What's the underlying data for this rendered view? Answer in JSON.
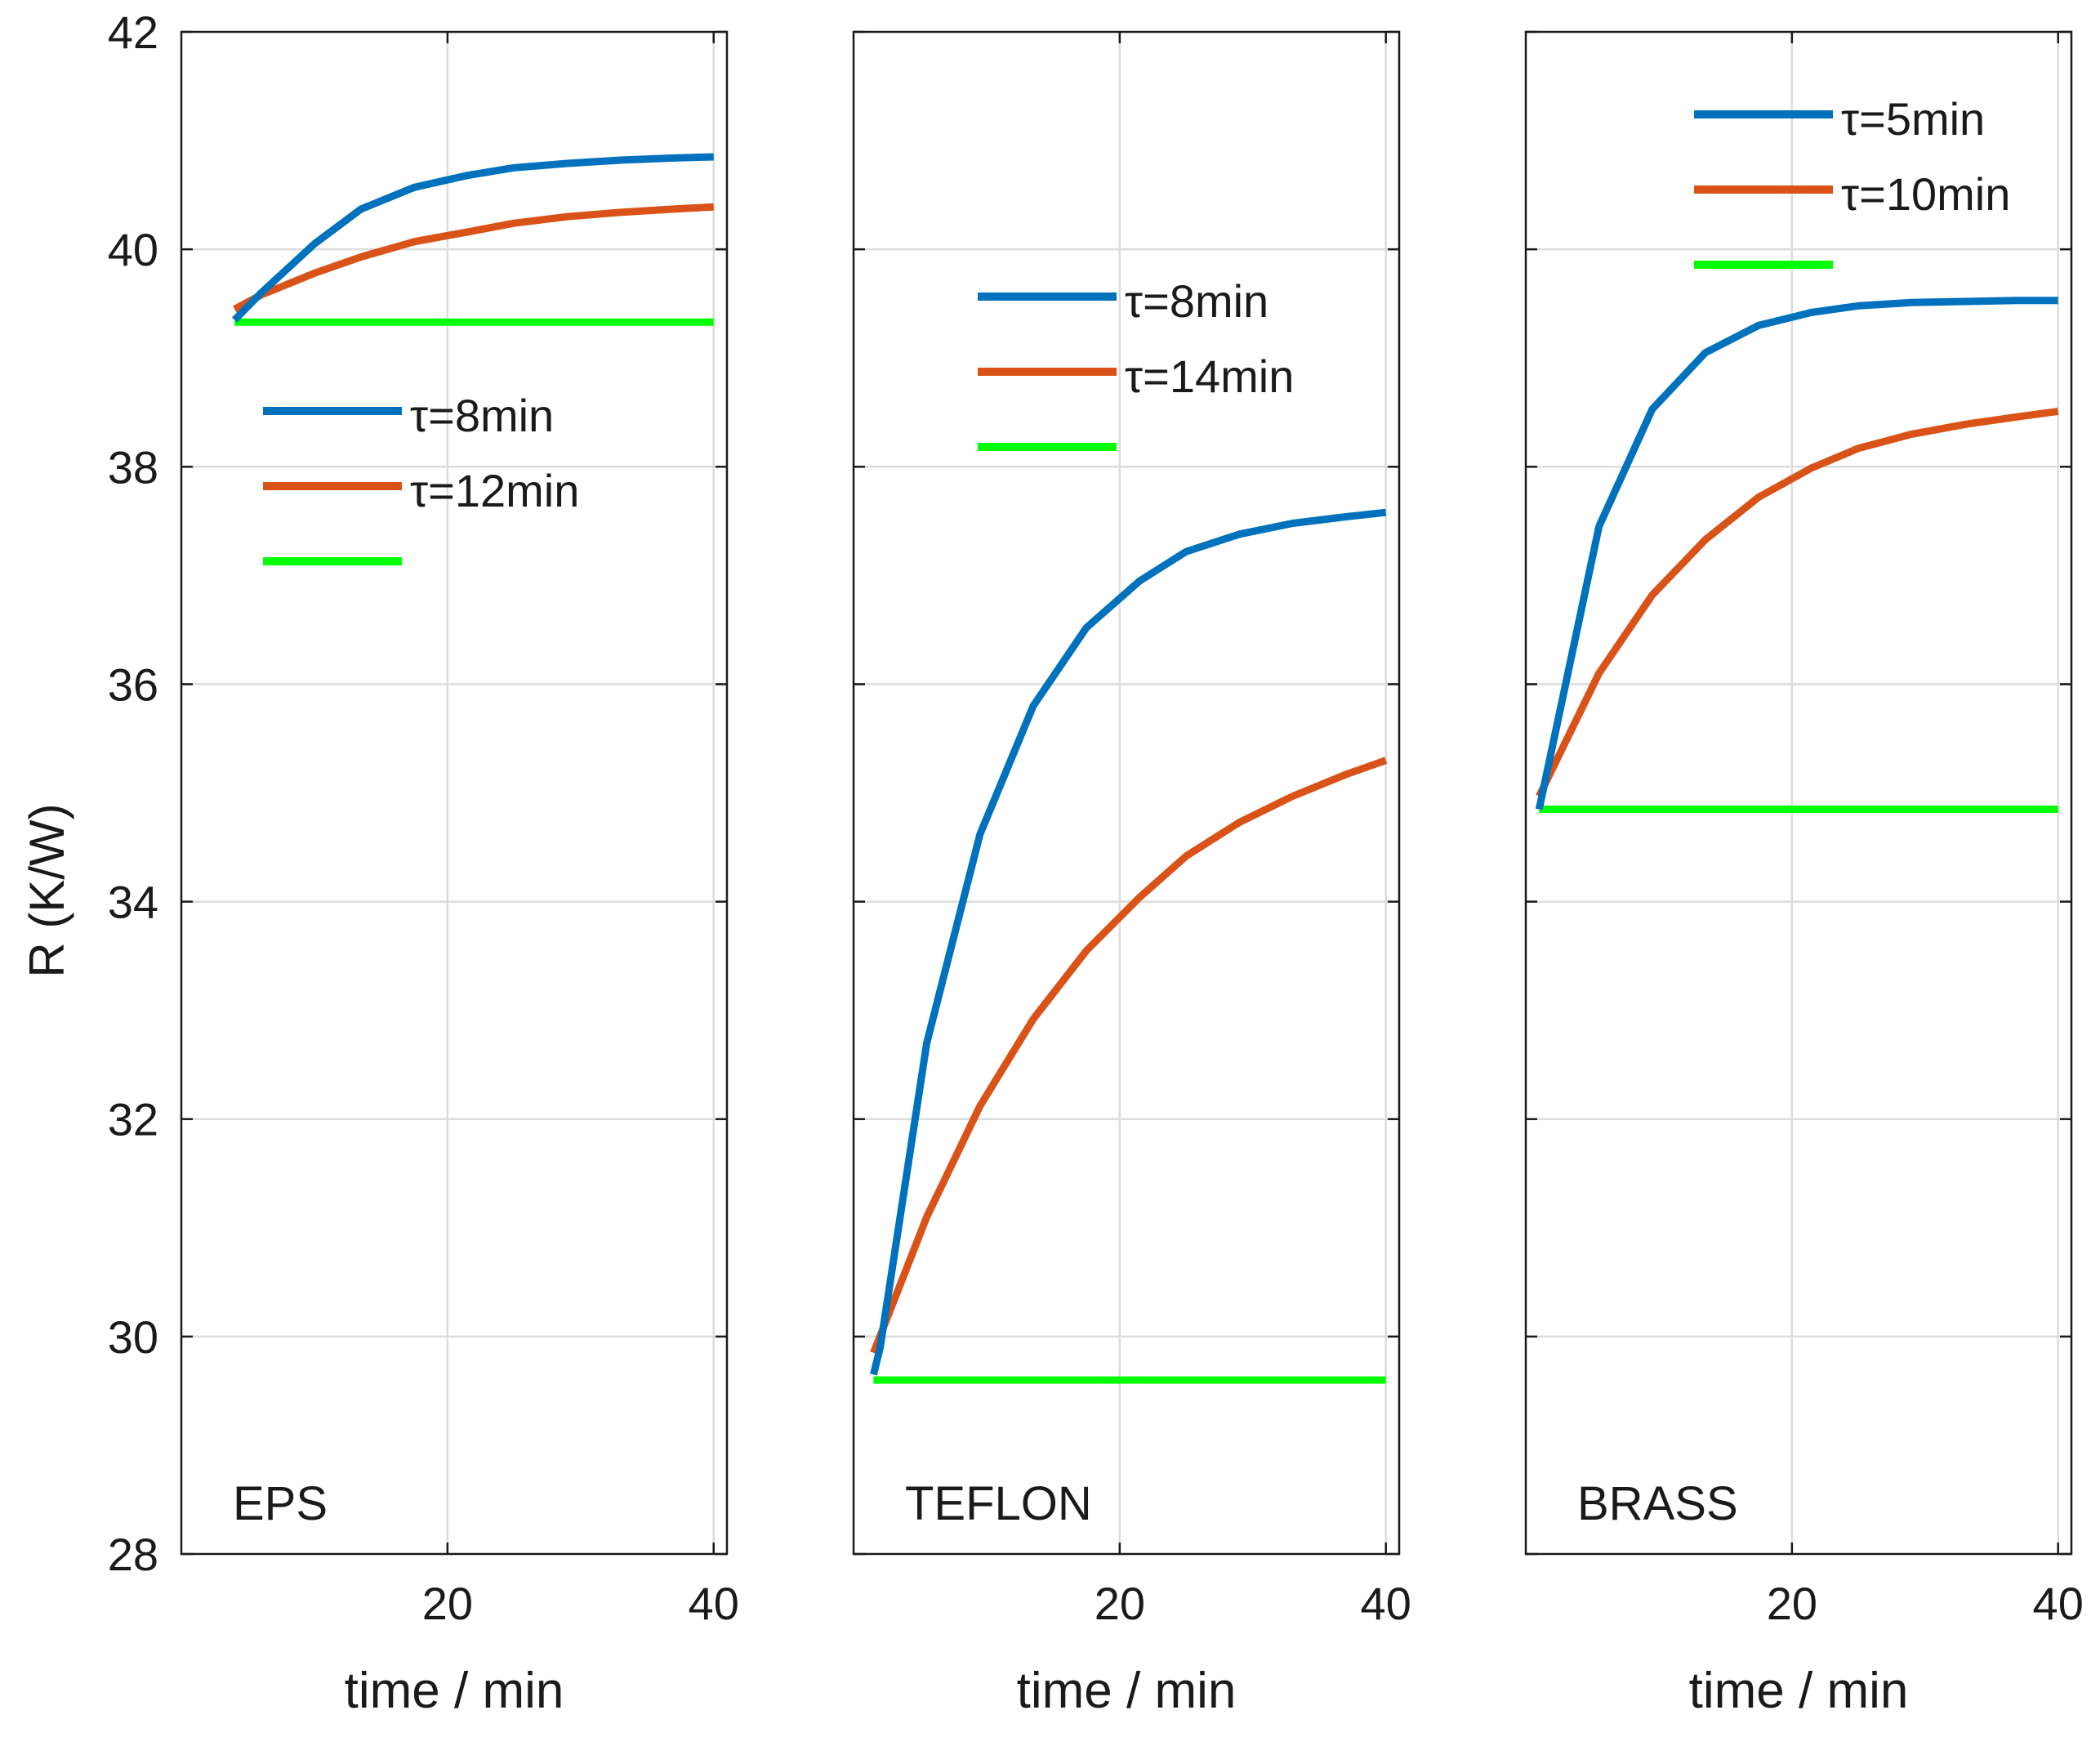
{
  "figure": {
    "ylabel": "R (K/W)",
    "xlabel": "time / min"
  },
  "colors": {
    "blue": "#0072BD",
    "orange": "#D95319",
    "green": "#00FF00",
    "grid": "#dcdcdc",
    "axis": "#1a1a1a"
  },
  "chart_data": [
    {
      "type": "line",
      "title": "EPS",
      "xlabel": "time / min",
      "ylabel": "R (K/W)",
      "xlim": [
        0,
        41
      ],
      "ylim": [
        28,
        42
      ],
      "xticks": [
        "20",
        "40"
      ],
      "yticks": [
        "28",
        "30",
        "32",
        "34",
        "36",
        "38",
        "40",
        "42"
      ],
      "legend_position": "upper-middle",
      "series": [
        {
          "name": "τ=8min",
          "color": "blue",
          "x": [
            4,
            6,
            10,
            13.5,
            17.5,
            21.5,
            25,
            29,
            33,
            37,
            40
          ],
          "y": [
            39.35,
            39.6,
            40.05,
            40.37,
            40.57,
            40.68,
            40.75,
            40.79,
            40.82,
            40.84,
            40.85
          ]
        },
        {
          "name": "τ=12min",
          "color": "orange",
          "x": [
            4,
            6,
            10,
            13.5,
            17.5,
            21.5,
            25,
            29,
            33,
            37,
            40
          ],
          "y": [
            39.45,
            39.58,
            39.78,
            39.93,
            40.07,
            40.16,
            40.24,
            40.3,
            40.34,
            40.37,
            40.39
          ]
        },
        {
          "name": "",
          "color": "green",
          "x": [
            4,
            40
          ],
          "y": [
            39.33,
            39.33
          ]
        }
      ]
    },
    {
      "type": "line",
      "title": "TEFLON",
      "xlabel": "time / min",
      "ylabel": "",
      "xlim": [
        0,
        41
      ],
      "ylim": [
        28,
        42
      ],
      "xticks": [
        "20",
        "40"
      ],
      "yticks": [],
      "legend_position": "upper-middle",
      "series": [
        {
          "name": "τ=8min",
          "color": "blue",
          "x": [
            1.5,
            2,
            5.5,
            9.5,
            13.5,
            17.5,
            21.5,
            25,
            29,
            33,
            37,
            40
          ],
          "y": [
            29.65,
            29.9,
            32.7,
            34.62,
            35.8,
            36.52,
            36.95,
            37.22,
            37.38,
            37.48,
            37.54,
            37.58
          ]
        },
        {
          "name": "τ=14min",
          "color": "orange",
          "x": [
            1.5,
            5.5,
            9.5,
            13.5,
            17.5,
            21.5,
            25,
            29,
            33,
            37,
            40
          ],
          "y": [
            29.85,
            31.1,
            32.12,
            32.92,
            33.55,
            34.04,
            34.42,
            34.73,
            34.97,
            35.17,
            35.3
          ]
        },
        {
          "name": "",
          "color": "green",
          "x": [
            1.5,
            40
          ],
          "y": [
            29.6,
            29.6
          ]
        }
      ]
    },
    {
      "type": "line",
      "title": "BRASS",
      "xlabel": "time / min",
      "ylabel": "",
      "xlim": [
        0,
        41
      ],
      "ylim": [
        28,
        42
      ],
      "xticks": [
        "20",
        "40"
      ],
      "yticks": [],
      "legend_position": "top-right",
      "series": [
        {
          "name": "τ=5min",
          "color": "blue",
          "x": [
            1,
            5.5,
            9.5,
            13.5,
            17.5,
            21.5,
            25,
            29,
            33,
            37,
            40
          ],
          "y": [
            34.85,
            37.45,
            38.53,
            39.05,
            39.3,
            39.42,
            39.48,
            39.51,
            39.52,
            39.53,
            39.53
          ]
        },
        {
          "name": "τ=10min",
          "color": "orange",
          "x": [
            1,
            5.5,
            9.5,
            13.5,
            17.5,
            21.5,
            25,
            29,
            33,
            37,
            40
          ],
          "y": [
            34.97,
            36.1,
            36.82,
            37.33,
            37.72,
            37.99,
            38.17,
            38.3,
            38.39,
            38.46,
            38.51
          ]
        },
        {
          "name": "",
          "color": "green",
          "x": [
            1,
            40
          ],
          "y": [
            34.85,
            34.85
          ]
        }
      ]
    }
  ]
}
